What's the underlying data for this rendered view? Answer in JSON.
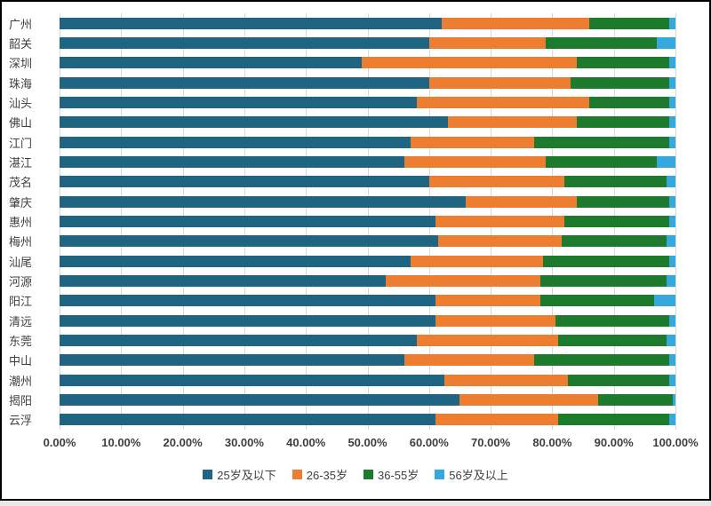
{
  "chart_data": {
    "type": "bar",
    "orientation": "horizontal",
    "stacked": true,
    "stacked_100_percent": true,
    "title": "",
    "xlabel": "",
    "ylabel": "",
    "xlim": [
      0,
      100
    ],
    "grid": true,
    "legend_position": "bottom",
    "categories": [
      "广州",
      "韶关",
      "深圳",
      "珠海",
      "汕头",
      "佛山",
      "江门",
      "湛江",
      "茂名",
      "肇庆",
      "惠州",
      "梅州",
      "汕尾",
      "河源",
      "阳江",
      "清远",
      "东莞",
      "中山",
      "潮州",
      "揭阳",
      "云浮"
    ],
    "x_ticks": [
      "0.00%",
      "10.00%",
      "20.00%",
      "30.00%",
      "40.00%",
      "50.00%",
      "60.00%",
      "70.00%",
      "80.00%",
      "90.00%",
      "100.00%"
    ],
    "series": [
      {
        "name": "25岁及以下",
        "color": "#1f6581",
        "values": [
          62,
          60,
          49,
          60,
          58,
          63,
          57,
          56,
          60,
          66,
          61,
          61.5,
          57,
          53,
          61,
          61,
          58,
          56,
          62.5,
          65,
          61
        ]
      },
      {
        "name": "26-35岁",
        "color": "#ed7d31",
        "values": [
          24,
          19,
          35,
          23,
          28,
          21,
          20,
          23,
          22,
          18,
          21,
          20,
          21.5,
          25,
          17,
          19.5,
          23,
          21,
          20,
          22.5,
          20
        ]
      },
      {
        "name": "36-55岁",
        "color": "#1e7b2e",
        "values": [
          13,
          18,
          15,
          16,
          13,
          15,
          22,
          18,
          16.5,
          15,
          17,
          17,
          20.5,
          20.5,
          18.5,
          18.5,
          17.5,
          22,
          16.5,
          12,
          18
        ]
      },
      {
        "name": "56岁及以上",
        "color": "#35a8dd",
        "values": [
          1,
          3,
          1,
          1,
          1,
          1,
          1,
          3,
          1.5,
          1,
          1,
          1.5,
          1,
          1.5,
          3.5,
          1,
          1.5,
          1,
          1,
          0.5,
          1
        ]
      }
    ]
  }
}
